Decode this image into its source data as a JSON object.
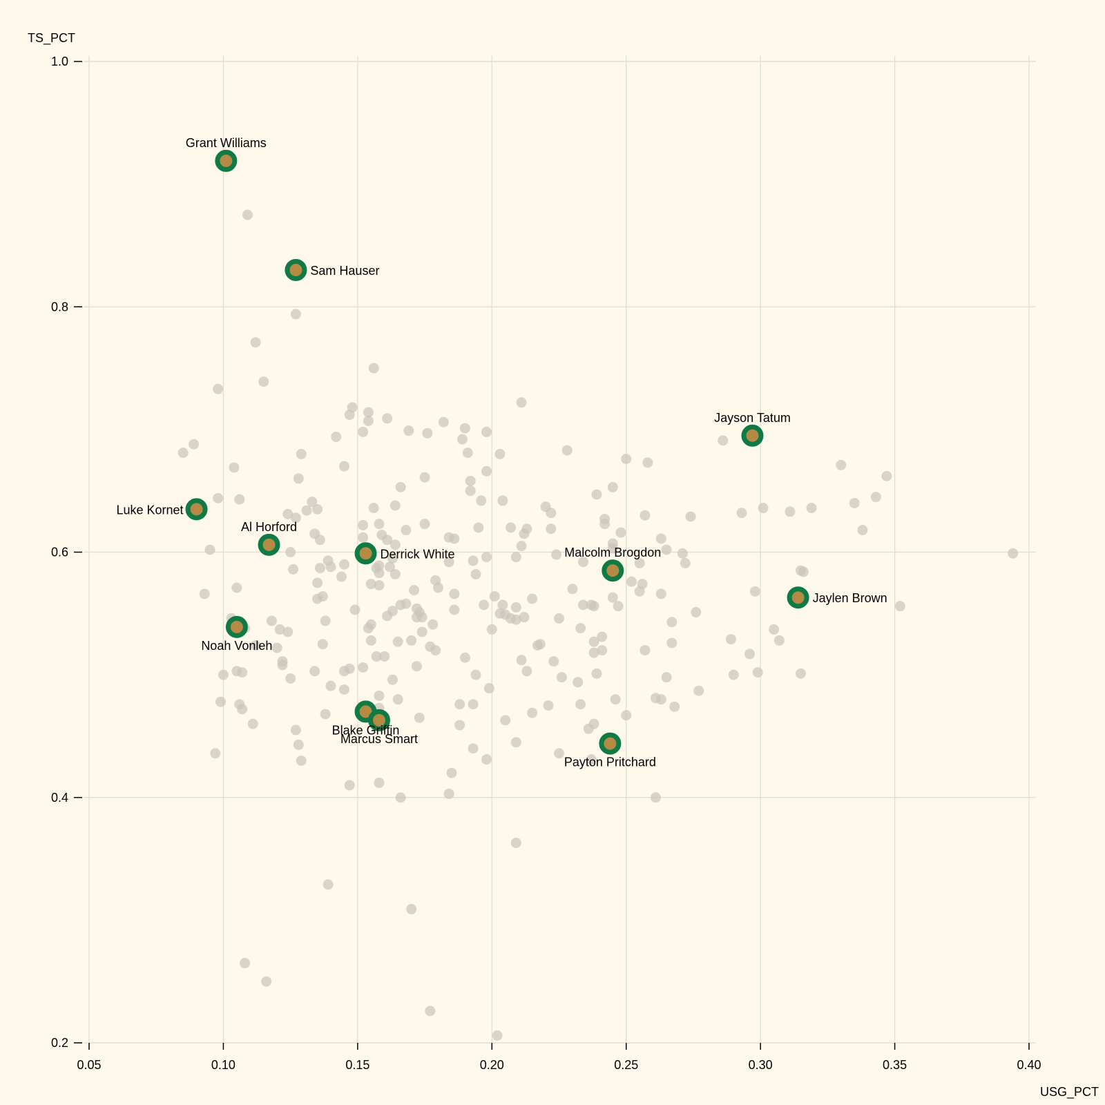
{
  "chart_data": {
    "type": "scatter",
    "xlabel": "USG_PCT",
    "ylabel": "TS_PCT",
    "xlim": [
      0.05,
      0.4
    ],
    "ylim": [
      0.2,
      1.0
    ],
    "x_ticks": [
      0.05,
      0.1,
      0.15,
      0.2,
      0.25,
      0.3,
      0.35,
      0.4
    ],
    "x_tick_labels": [
      "0.05",
      "0.10",
      "0.15",
      "0.20",
      "0.25",
      "0.30",
      "0.35",
      "0.40"
    ],
    "y_ticks": [
      0.2,
      0.4,
      0.6,
      0.8,
      1.0
    ],
    "y_tick_labels": [
      "0.2",
      "0.4",
      "0.6",
      "0.8",
      "1.0"
    ],
    "grid": true,
    "colors": {
      "highlight_ring": "#0f7a44",
      "highlight_fill": "#b48a45",
      "background_point": "#c9c5bb",
      "background": "#fef9ea"
    },
    "highlighted": [
      {
        "name": "Grant Williams",
        "x": 0.101,
        "y": 0.919,
        "label_pos": "above"
      },
      {
        "name": "Sam Hauser",
        "x": 0.127,
        "y": 0.83,
        "label_pos": "right"
      },
      {
        "name": "Jayson Tatum",
        "x": 0.297,
        "y": 0.695,
        "label_pos": "above"
      },
      {
        "name": "Luke Kornet",
        "x": 0.09,
        "y": 0.635,
        "label_pos": "left"
      },
      {
        "name": "Al Horford",
        "x": 0.117,
        "y": 0.606,
        "label_pos": "above"
      },
      {
        "name": "Derrick White",
        "x": 0.153,
        "y": 0.599,
        "label_pos": "right"
      },
      {
        "name": "Malcolm Brogdon",
        "x": 0.245,
        "y": 0.585,
        "label_pos": "above"
      },
      {
        "name": "Jaylen Brown",
        "x": 0.314,
        "y": 0.563,
        "label_pos": "right"
      },
      {
        "name": "Noah Vonleh",
        "x": 0.105,
        "y": 0.539,
        "label_pos": "below"
      },
      {
        "name": "Blake Griffin",
        "x": 0.153,
        "y": 0.47,
        "label_pos": "below"
      },
      {
        "name": "Marcus Smart",
        "x": 0.158,
        "y": 0.463,
        "label_pos": "below"
      },
      {
        "name": "Payton Pritchard",
        "x": 0.244,
        "y": 0.444,
        "label_pos": "below"
      }
    ],
    "points": [
      [
        0.109,
        0.875
      ],
      [
        0.127,
        0.794
      ],
      [
        0.112,
        0.771
      ],
      [
        0.156,
        0.75
      ],
      [
        0.115,
        0.739
      ],
      [
        0.098,
        0.733
      ],
      [
        0.211,
        0.722
      ],
      [
        0.148,
        0.718
      ],
      [
        0.154,
        0.714
      ],
      [
        0.147,
        0.712
      ],
      [
        0.161,
        0.709
      ],
      [
        0.154,
        0.707
      ],
      [
        0.182,
        0.706
      ],
      [
        0.19,
        0.701
      ],
      [
        0.169,
        0.699
      ],
      [
        0.152,
        0.698
      ],
      [
        0.198,
        0.698
      ],
      [
        0.176,
        0.697
      ],
      [
        0.142,
        0.694
      ],
      [
        0.189,
        0.692
      ],
      [
        0.286,
        0.691
      ],
      [
        0.089,
        0.688
      ],
      [
        0.228,
        0.683
      ],
      [
        0.085,
        0.681
      ],
      [
        0.191,
        0.681
      ],
      [
        0.203,
        0.68
      ],
      [
        0.129,
        0.68
      ],
      [
        0.25,
        0.676
      ],
      [
        0.258,
        0.673
      ],
      [
        0.33,
        0.671
      ],
      [
        0.145,
        0.67
      ],
      [
        0.104,
        0.669
      ],
      [
        0.198,
        0.666
      ],
      [
        0.347,
        0.662
      ],
      [
        0.175,
        0.661
      ],
      [
        0.128,
        0.66
      ],
      [
        0.192,
        0.658
      ],
      [
        0.166,
        0.653
      ],
      [
        0.245,
        0.653
      ],
      [
        0.192,
        0.65
      ],
      [
        0.239,
        0.647
      ],
      [
        0.343,
        0.645
      ],
      [
        0.098,
        0.644
      ],
      [
        0.106,
        0.643
      ],
      [
        0.196,
        0.642
      ],
      [
        0.204,
        0.642
      ],
      [
        0.133,
        0.641
      ],
      [
        0.335,
        0.64
      ],
      [
        0.164,
        0.638
      ],
      [
        0.22,
        0.637
      ],
      [
        0.156,
        0.636
      ],
      [
        0.301,
        0.636
      ],
      [
        0.319,
        0.636
      ],
      [
        0.135,
        0.635
      ],
      [
        0.131,
        0.634
      ],
      [
        0.311,
        0.633
      ],
      [
        0.222,
        0.632
      ],
      [
        0.293,
        0.632
      ],
      [
        0.124,
        0.631
      ],
      [
        0.257,
        0.63
      ],
      [
        0.274,
        0.629
      ],
      [
        0.127,
        0.628
      ],
      [
        0.242,
        0.627
      ],
      [
        0.175,
        0.623
      ],
      [
        0.158,
        0.623
      ],
      [
        0.152,
        0.622
      ],
      [
        0.195,
        0.62
      ],
      [
        0.207,
        0.62
      ],
      [
        0.242,
        0.623
      ],
      [
        0.213,
        0.619
      ],
      [
        0.222,
        0.619
      ],
      [
        0.168,
        0.618
      ],
      [
        0.338,
        0.618
      ],
      [
        0.248,
        0.616
      ],
      [
        0.134,
        0.615
      ],
      [
        0.212,
        0.615
      ],
      [
        0.159,
        0.614
      ],
      [
        0.152,
        0.612
      ],
      [
        0.184,
        0.612
      ],
      [
        0.186,
        0.611
      ],
      [
        0.263,
        0.611
      ],
      [
        0.136,
        0.61
      ],
      [
        0.161,
        0.61
      ],
      [
        0.245,
        0.607
      ],
      [
        0.164,
        0.606
      ],
      [
        0.211,
        0.605
      ],
      [
        0.245,
        0.603
      ],
      [
        0.095,
        0.602
      ],
      [
        0.265,
        0.602
      ],
      [
        0.125,
        0.6
      ],
      [
        0.271,
        0.599
      ],
      [
        0.224,
        0.598
      ],
      [
        0.394,
        0.599
      ],
      [
        0.198,
        0.596
      ],
      [
        0.209,
        0.596
      ],
      [
        0.163,
        0.595
      ],
      [
        0.139,
        0.593
      ],
      [
        0.193,
        0.593
      ],
      [
        0.234,
        0.592
      ],
      [
        0.184,
        0.592
      ],
      [
        0.255,
        0.591
      ],
      [
        0.272,
        0.591
      ],
      [
        0.145,
        0.59
      ],
      [
        0.158,
        0.589
      ],
      [
        0.14,
        0.588
      ],
      [
        0.162,
        0.588
      ],
      [
        0.136,
        0.587
      ],
      [
        0.157,
        0.587
      ],
      [
        0.126,
        0.586
      ],
      [
        0.315,
        0.585
      ],
      [
        0.316,
        0.584
      ],
      [
        0.158,
        0.583
      ],
      [
        0.164,
        0.582
      ],
      [
        0.194,
        0.582
      ],
      [
        0.144,
        0.58
      ],
      [
        0.179,
        0.577
      ],
      [
        0.252,
        0.576
      ],
      [
        0.135,
        0.575
      ],
      [
        0.256,
        0.574
      ],
      [
        0.155,
        0.574
      ],
      [
        0.158,
        0.573
      ],
      [
        0.18,
        0.571
      ],
      [
        0.105,
        0.571
      ],
      [
        0.23,
        0.57
      ],
      [
        0.171,
        0.569
      ],
      [
        0.298,
        0.568
      ],
      [
        0.255,
        0.568
      ],
      [
        0.263,
        0.566
      ],
      [
        0.186,
        0.566
      ],
      [
        0.093,
        0.566
      ],
      [
        0.201,
        0.564
      ],
      [
        0.137,
        0.564
      ],
      [
        0.135,
        0.562
      ],
      [
        0.215,
        0.562
      ],
      [
        0.245,
        0.563
      ],
      [
        0.168,
        0.558
      ],
      [
        0.234,
        0.557
      ],
      [
        0.166,
        0.557
      ],
      [
        0.197,
        0.557
      ],
      [
        0.204,
        0.557
      ],
      [
        0.237,
        0.557
      ],
      [
        0.238,
        0.556
      ],
      [
        0.247,
        0.556
      ],
      [
        0.352,
        0.556
      ],
      [
        0.209,
        0.555
      ],
      [
        0.172,
        0.554
      ],
      [
        0.149,
        0.553
      ],
      [
        0.186,
        0.553
      ],
      [
        0.163,
        0.552
      ],
      [
        0.173,
        0.551
      ],
      [
        0.276,
        0.551
      ],
      [
        0.203,
        0.55
      ],
      [
        0.205,
        0.549
      ],
      [
        0.161,
        0.548
      ],
      [
        0.174,
        0.547
      ],
      [
        0.212,
        0.547
      ],
      [
        0.207,
        0.546
      ],
      [
        0.172,
        0.547
      ],
      [
        0.209,
        0.545
      ],
      [
        0.225,
        0.546
      ],
      [
        0.103,
        0.546
      ],
      [
        0.118,
        0.544
      ],
      [
        0.138,
        0.544
      ],
      [
        0.267,
        0.543
      ],
      [
        0.178,
        0.541
      ],
      [
        0.155,
        0.541
      ],
      [
        0.154,
        0.538
      ],
      [
        0.233,
        0.538
      ],
      [
        0.108,
        0.538
      ],
      [
        0.2,
        0.537
      ],
      [
        0.121,
        0.537
      ],
      [
        0.305,
        0.537
      ],
      [
        0.174,
        0.535
      ],
      [
        0.124,
        0.535
      ],
      [
        0.241,
        0.531
      ],
      [
        0.289,
        0.529
      ],
      [
        0.307,
        0.528
      ],
      [
        0.17,
        0.528
      ],
      [
        0.155,
        0.528
      ],
      [
        0.165,
        0.527
      ],
      [
        0.238,
        0.527
      ],
      [
        0.267,
        0.526
      ],
      [
        0.137,
        0.525
      ],
      [
        0.218,
        0.525
      ],
      [
        0.217,
        0.524
      ],
      [
        0.112,
        0.524
      ],
      [
        0.177,
        0.523
      ],
      [
        0.12,
        0.522
      ],
      [
        0.179,
        0.52
      ],
      [
        0.241,
        0.52
      ],
      [
        0.257,
        0.52
      ],
      [
        0.238,
        0.518
      ],
      [
        0.296,
        0.517
      ],
      [
        0.157,
        0.515
      ],
      [
        0.16,
        0.515
      ],
      [
        0.19,
        0.514
      ],
      [
        0.211,
        0.512
      ],
      [
        0.223,
        0.511
      ],
      [
        0.122,
        0.511
      ],
      [
        0.122,
        0.508
      ],
      [
        0.172,
        0.507
      ],
      [
        0.152,
        0.506
      ],
      [
        0.147,
        0.505
      ],
      [
        0.145,
        0.503
      ],
      [
        0.213,
        0.503
      ],
      [
        0.299,
        0.502
      ],
      [
        0.105,
        0.503
      ],
      [
        0.134,
        0.503
      ],
      [
        0.107,
        0.502
      ],
      [
        0.239,
        0.501
      ],
      [
        0.315,
        0.501
      ],
      [
        0.29,
        0.5
      ],
      [
        0.1,
        0.5
      ],
      [
        0.194,
        0.5
      ],
      [
        0.265,
        0.498
      ],
      [
        0.226,
        0.498
      ],
      [
        0.125,
        0.497
      ],
      [
        0.163,
        0.496
      ],
      [
        0.232,
        0.494
      ],
      [
        0.14,
        0.491
      ],
      [
        0.199,
        0.489
      ],
      [
        0.145,
        0.488
      ],
      [
        0.277,
        0.487
      ],
      [
        0.158,
        0.483
      ],
      [
        0.165,
        0.48
      ],
      [
        0.246,
        0.48
      ],
      [
        0.261,
        0.481
      ],
      [
        0.263,
        0.48
      ],
      [
        0.099,
        0.478
      ],
      [
        0.106,
        0.476
      ],
      [
        0.188,
        0.476
      ],
      [
        0.193,
        0.476
      ],
      [
        0.233,
        0.476
      ],
      [
        0.221,
        0.475
      ],
      [
        0.268,
        0.474
      ],
      [
        0.107,
        0.472
      ],
      [
        0.158,
        0.473
      ],
      [
        0.215,
        0.469
      ],
      [
        0.138,
        0.468
      ],
      [
        0.25,
        0.467
      ],
      [
        0.173,
        0.465
      ],
      [
        0.205,
        0.463
      ],
      [
        0.111,
        0.46
      ],
      [
        0.188,
        0.459
      ],
      [
        0.238,
        0.46
      ],
      [
        0.236,
        0.456
      ],
      [
        0.127,
        0.455
      ],
      [
        0.209,
        0.445
      ],
      [
        0.128,
        0.443
      ],
      [
        0.193,
        0.44
      ],
      [
        0.097,
        0.436
      ],
      [
        0.225,
        0.436
      ],
      [
        0.198,
        0.431
      ],
      [
        0.129,
        0.43
      ],
      [
        0.237,
        0.431
      ],
      [
        0.185,
        0.42
      ],
      [
        0.158,
        0.412
      ],
      [
        0.147,
        0.41
      ],
      [
        0.184,
        0.403
      ],
      [
        0.166,
        0.4
      ],
      [
        0.261,
        0.4
      ],
      [
        0.209,
        0.363
      ],
      [
        0.139,
        0.329
      ],
      [
        0.17,
        0.309
      ],
      [
        0.108,
        0.265
      ],
      [
        0.116,
        0.25
      ],
      [
        0.177,
        0.226
      ],
      [
        0.202,
        0.206
      ]
    ]
  }
}
